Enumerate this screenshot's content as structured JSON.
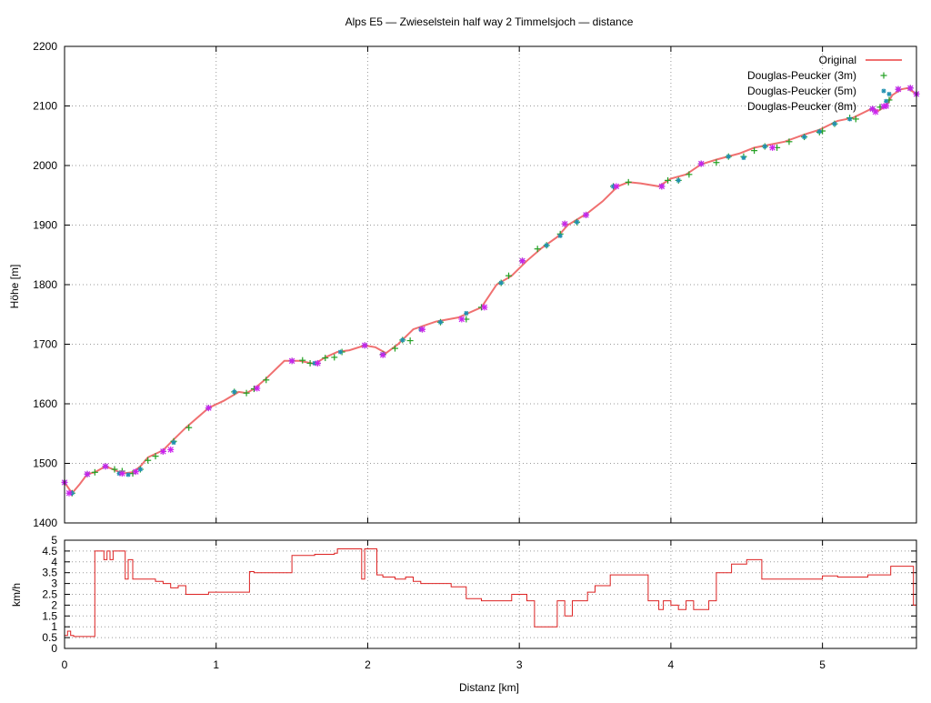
{
  "chart_data": [
    {
      "type": "line",
      "title": "Alps E5 — Zwieselstein half way 2 Timmelsjoch — distance",
      "xlabel": "",
      "ylabel": "Höhe [m]",
      "xlim": [
        0,
        5.62
      ],
      "ylim": [
        1400,
        2200
      ],
      "xticks": [
        0,
        1,
        2,
        3,
        4,
        5
      ],
      "xtick_labels": [],
      "yticks": [
        1400,
        1500,
        1600,
        1700,
        1800,
        1900,
        2000,
        2100,
        2200
      ],
      "ytick_labels": [
        "1400",
        "1500",
        "1600",
        "1700",
        "1800",
        "1900",
        "2000",
        "2100",
        "2200"
      ],
      "grid": true,
      "legend_position": "top-right",
      "colors": {
        "original": "#f07070",
        "dp3": "#22a022",
        "dp5": "#2090b0",
        "dp8": "#cc22ee"
      },
      "series": [
        {
          "name": "Original",
          "style": "line",
          "x": [
            0,
            0.05,
            0.1,
            0.15,
            0.2,
            0.27,
            0.32,
            0.38,
            0.45,
            0.5,
            0.55,
            0.65,
            0.72,
            0.8,
            0.95,
            1.05,
            1.15,
            1.2,
            1.25,
            1.32,
            1.45,
            1.55,
            1.65,
            1.72,
            1.8,
            1.88,
            1.98,
            2.05,
            2.12,
            2.2,
            2.3,
            2.45,
            2.6,
            2.75,
            2.85,
            2.95,
            3.05,
            3.15,
            3.25,
            3.32,
            3.45,
            3.55,
            3.65,
            3.72,
            3.8,
            3.92,
            4.0,
            4.1,
            4.2,
            4.3,
            4.45,
            4.55,
            4.65,
            4.75,
            4.88,
            4.98,
            5.1,
            5.2,
            5.32,
            5.37,
            5.42,
            5.46,
            5.52,
            5.56,
            5.62
          ],
          "y": [
            1468,
            1450,
            1465,
            1482,
            1485,
            1495,
            1490,
            1483,
            1485,
            1495,
            1510,
            1522,
            1540,
            1560,
            1593,
            1605,
            1620,
            1618,
            1625,
            1640,
            1672,
            1672,
            1667,
            1678,
            1687,
            1690,
            1698,
            1695,
            1685,
            1700,
            1725,
            1738,
            1745,
            1762,
            1800,
            1815,
            1840,
            1862,
            1880,
            1900,
            1920,
            1940,
            1965,
            1972,
            1970,
            1965,
            1978,
            1985,
            2002,
            2010,
            2020,
            2030,
            2035,
            2040,
            2052,
            2060,
            2075,
            2080,
            2095,
            2092,
            2100,
            2118,
            2128,
            2130,
            2120
          ]
        },
        {
          "name": "Douglas-Peucker (3m)",
          "style": "plus",
          "x": [
            0,
            0.05,
            0.15,
            0.2,
            0.27,
            0.33,
            0.38,
            0.45,
            0.5,
            0.55,
            0.6,
            0.65,
            0.72,
            0.82,
            0.95,
            1.12,
            1.2,
            1.25,
            1.33,
            1.5,
            1.57,
            1.62,
            1.67,
            1.72,
            1.78,
            1.83,
            1.98,
            2.1,
            2.18,
            2.23,
            2.28,
            2.36,
            2.48,
            2.65,
            2.75,
            2.88,
            2.93,
            3.02,
            3.12,
            3.18,
            3.27,
            3.3,
            3.38,
            3.44,
            3.62,
            3.72,
            3.94,
            3.98,
            4.05,
            4.12,
            4.2,
            4.3,
            4.38,
            4.48,
            4.55,
            4.62,
            4.7,
            4.78,
            4.88,
            4.98,
            5.0,
            5.08,
            5.18,
            5.22,
            5.33,
            5.38,
            5.42,
            5.44,
            5.5,
            5.58,
            5.62
          ],
          "y": [
            1468,
            1450,
            1482,
            1485,
            1495,
            1490,
            1487,
            1483,
            1490,
            1505,
            1512,
            1520,
            1537,
            1560,
            1593,
            1620,
            1618,
            1625,
            1640,
            1672,
            1673,
            1668,
            1668,
            1677,
            1678,
            1687,
            1698,
            1683,
            1693,
            1707,
            1706,
            1725,
            1737,
            1742,
            1762,
            1803,
            1815,
            1840,
            1860,
            1866,
            1885,
            1902,
            1905,
            1917,
            1965,
            1972,
            1965,
            1975,
            1975,
            1985,
            2003,
            2005,
            2015,
            2015,
            2025,
            2032,
            2030,
            2040,
            2048,
            2056,
            2058,
            2070,
            2080,
            2078,
            2095,
            2098,
            2100,
            2110,
            2128,
            2130,
            2120
          ]
        },
        {
          "name": "Douglas-Peucker (5m)",
          "style": "star-small",
          "x": [
            0,
            0.05,
            0.15,
            0.27,
            0.36,
            0.42,
            0.5,
            0.72,
            0.95,
            1.12,
            1.5,
            1.65,
            1.82,
            1.98,
            2.1,
            2.23,
            2.35,
            2.48,
            2.65,
            2.88,
            3.02,
            3.18,
            3.27,
            3.38,
            3.44,
            3.62,
            3.94,
            4.05,
            4.2,
            4.38,
            4.48,
            4.62,
            4.88,
            4.98,
            5.08,
            5.18,
            5.33,
            5.42,
            5.44,
            5.5,
            5.58,
            5.62
          ],
          "y": [
            1468,
            1450,
            1482,
            1495,
            1483,
            1481,
            1490,
            1535,
            1593,
            1620,
            1672,
            1668,
            1687,
            1698,
            1683,
            1707,
            1725,
            1737,
            1752,
            1803,
            1840,
            1866,
            1882,
            1905,
            1917,
            1965,
            1965,
            1975,
            2003,
            2015,
            2013,
            2032,
            2048,
            2057,
            2070,
            2078,
            2095,
            2108,
            2120,
            2128,
            2130,
            2120
          ]
        },
        {
          "name": "Douglas-Peucker (8m)",
          "style": "star",
          "x": [
            0,
            0.03,
            0.15,
            0.27,
            0.38,
            0.47,
            0.65,
            0.7,
            0.95,
            1.27,
            1.5,
            1.67,
            1.98,
            2.1,
            2.36,
            2.62,
            2.77,
            3.02,
            3.3,
            3.44,
            3.64,
            3.94,
            4.2,
            4.67,
            5.33,
            5.35,
            5.42,
            5.5,
            5.58,
            5.62
          ],
          "y": [
            1468,
            1450,
            1482,
            1495,
            1483,
            1486,
            1520,
            1523,
            1593,
            1626,
            1672,
            1668,
            1698,
            1682,
            1725,
            1742,
            1762,
            1840,
            1902,
            1917,
            1965,
            1965,
            2003,
            2030,
            2095,
            2090,
            2100,
            2128,
            2130,
            2120
          ]
        }
      ]
    },
    {
      "type": "line",
      "title": "",
      "xlabel": "Distanz [km]",
      "ylabel": "km/h",
      "xlim": [
        0,
        5.62
      ],
      "ylim": [
        0,
        5
      ],
      "xticks": [
        0,
        1,
        2,
        3,
        4,
        5
      ],
      "xtick_labels": [
        "0",
        "1",
        "2",
        "3",
        "4",
        "5"
      ],
      "yticks": [
        0,
        0.5,
        1,
        1.5,
        2,
        2.5,
        3,
        3.5,
        4,
        4.5,
        5
      ],
      "ytick_labels": [
        "0",
        "0.5",
        "1",
        "1.5",
        "2",
        "2.5",
        "3",
        "3.5",
        "4",
        "4.5",
        "5"
      ],
      "grid": true,
      "colors": {
        "speed": "#dd2222"
      },
      "series": [
        {
          "name": "",
          "style": "step",
          "x": [
            0,
            0.02,
            0.04,
            0.06,
            0.1,
            0.2,
            0.26,
            0.28,
            0.3,
            0.32,
            0.36,
            0.4,
            0.42,
            0.45,
            0.5,
            0.55,
            0.6,
            0.65,
            0.7,
            0.75,
            0.8,
            0.85,
            0.9,
            0.95,
            1.0,
            1.1,
            1.22,
            1.25,
            1.4,
            1.5,
            1.55,
            1.65,
            1.78,
            1.8,
            1.95,
            1.96,
            1.98,
            2.06,
            2.1,
            2.18,
            2.25,
            2.3,
            2.35,
            2.45,
            2.55,
            2.6,
            2.65,
            2.7,
            2.75,
            2.8,
            2.85,
            2.9,
            2.95,
            3.0,
            3.05,
            3.1,
            3.2,
            3.25,
            3.3,
            3.35,
            3.4,
            3.45,
            3.5,
            3.6,
            3.75,
            3.85,
            3.92,
            3.95,
            4.0,
            4.05,
            4.1,
            4.15,
            4.2,
            4.25,
            4.3,
            4.35,
            4.4,
            4.45,
            4.5,
            4.6,
            4.7,
            4.9,
            5.0,
            5.1,
            5.2,
            5.3,
            5.35,
            5.4,
            5.45,
            5.55,
            5.6,
            5.62
          ],
          "y": [
            0.6,
            0.8,
            0.6,
            0.55,
            0.55,
            4.5,
            4.1,
            4.5,
            4.1,
            4.5,
            4.5,
            3.2,
            4.1,
            3.2,
            3.2,
            3.2,
            3.1,
            3.0,
            2.8,
            2.9,
            2.5,
            2.5,
            2.5,
            2.6,
            2.6,
            2.6,
            3.55,
            3.5,
            3.5,
            4.3,
            4.3,
            4.35,
            4.4,
            4.6,
            4.6,
            3.2,
            4.6,
            3.4,
            3.3,
            3.2,
            3.3,
            3.1,
            3.0,
            3.0,
            2.85,
            2.85,
            2.3,
            2.3,
            2.2,
            2.2,
            2.2,
            2.2,
            2.5,
            2.5,
            2.2,
            1.0,
            1.0,
            2.2,
            1.5,
            2.2,
            2.2,
            2.6,
            2.9,
            3.4,
            3.4,
            2.2,
            1.8,
            2.2,
            2.0,
            1.8,
            2.2,
            1.8,
            1.8,
            2.2,
            3.5,
            3.5,
            3.9,
            3.9,
            4.1,
            3.2,
            3.2,
            3.2,
            3.35,
            3.3,
            3.3,
            3.4,
            3.4,
            3.4,
            3.8,
            3.8,
            2.0,
            0.0
          ]
        }
      ]
    }
  ]
}
